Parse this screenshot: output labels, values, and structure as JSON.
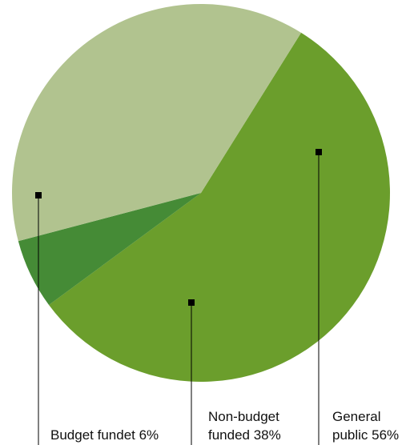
{
  "chart_data": {
    "type": "pie",
    "slices": [
      {
        "label_line1": "General",
        "label_line2": "public 56%",
        "value": 56,
        "color": "#6b9e2c"
      },
      {
        "label_line1": "",
        "label_line2": "Budget fundet 6%",
        "value": 6,
        "color": "#458b36"
      },
      {
        "label_line1": "Non-budget",
        "label_line2": "funded 38%",
        "value": 38,
        "color": "#b1c38f"
      }
    ],
    "legend": "callout labels below the pie with leader lines"
  }
}
